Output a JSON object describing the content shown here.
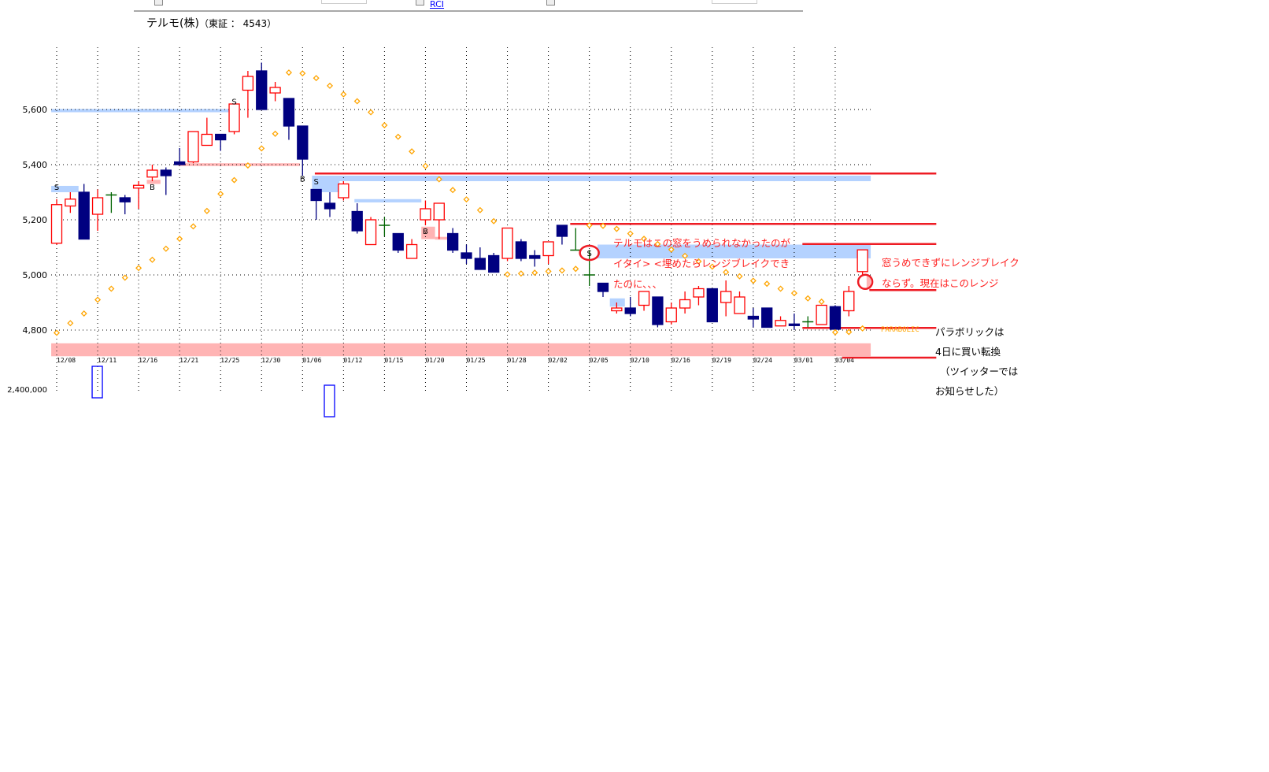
{
  "header": {
    "links": [
      "",
      "RCI",
      "",
      ""
    ],
    "title": "テルモ(株)",
    "subtitle": "（東証 ： 4543）"
  },
  "chart_data": {
    "type": "candlestick",
    "title": "テルモ(株)（東証 ： 4543）",
    "ylim": [
      4700,
      5780
    ],
    "yticks": [
      5600,
      5400,
      5200,
      5000,
      4800
    ],
    "ytick_labels": [
      "5,600",
      "5,400",
      "5,200",
      "5,000",
      "4,800"
    ],
    "grid": true,
    "date_labels": [
      "12/08",
      "12/11",
      "12/16",
      "12/21",
      "12/25",
      "12/30",
      "01/06",
      "01/12",
      "01/15",
      "01/20",
      "01/25",
      "01/28",
      "02/02",
      "02/05",
      "02/10",
      "02/16",
      "02/19",
      "02/24",
      "03/01",
      "03/04"
    ],
    "date_label_every": 3,
    "colors": {
      "up": "#ff0000",
      "down": "#000080",
      "doji": "#006400",
      "parabolic": "#ffa500",
      "band_blue": "#b4d2ff",
      "band_pink": "#ffb4b4",
      "line_red": "#ee1c24"
    },
    "ohlc": [
      [
        5115,
        5275,
        5110,
        5255
      ],
      [
        5250,
        5300,
        5225,
        5275
      ],
      [
        5300,
        5330,
        5130,
        5130
      ],
      [
        5220,
        5310,
        5160,
        5280
      ],
      [
        5290,
        5300,
        5225,
        5290
      ],
      [
        5280,
        5290,
        5220,
        5265
      ],
      [
        5315,
        5340,
        5240,
        5325
      ],
      [
        5355,
        5400,
        5340,
        5380
      ],
      [
        5380,
        5390,
        5290,
        5360
      ],
      [
        5410,
        5460,
        5400,
        5400
      ],
      [
        5410,
        5520,
        5405,
        5520
      ],
      [
        5470,
        5570,
        5470,
        5510
      ],
      [
        5510,
        5510,
        5450,
        5490
      ],
      [
        5520,
        5620,
        5510,
        5620
      ],
      [
        5670,
        5740,
        5570,
        5720
      ],
      [
        5740,
        5770,
        5600,
        5600
      ],
      [
        5660,
        5700,
        5630,
        5680
      ],
      [
        5640,
        5640,
        5490,
        5540
      ],
      [
        5540,
        5540,
        5360,
        5420
      ],
      [
        5310,
        5310,
        5200,
        5270
      ],
      [
        5260,
        5300,
        5210,
        5240
      ],
      [
        5280,
        5340,
        5270,
        5330
      ],
      [
        5230,
        5260,
        5150,
        5160
      ],
      [
        5110,
        5210,
        5110,
        5200
      ],
      [
        5180,
        5210,
        5140,
        5180
      ],
      [
        5150,
        5150,
        5080,
        5090
      ],
      [
        5060,
        5130,
        5060,
        5110
      ],
      [
        5200,
        5270,
        5180,
        5240
      ],
      [
        5200,
        5260,
        5130,
        5260
      ],
      [
        5150,
        5170,
        5080,
        5090
      ],
      [
        5080,
        5110,
        5040,
        5060
      ],
      [
        5060,
        5100,
        5020,
        5020
      ],
      [
        5070,
        5080,
        5010,
        5010
      ],
      [
        5060,
        5170,
        5050,
        5170
      ],
      [
        5120,
        5130,
        5050,
        5060
      ],
      [
        5070,
        5090,
        5030,
        5060
      ],
      [
        5070,
        5120,
        5040,
        5120
      ],
      [
        5180,
        5180,
        5110,
        5140
      ],
      [
        5090,
        5170,
        5090,
        5090
      ],
      [
        5000,
        5090,
        4960,
        5000
      ],
      [
        4970,
        4970,
        4920,
        4940
      ],
      [
        4870,
        4900,
        4860,
        4880
      ],
      [
        4880,
        4920,
        4850,
        4860
      ],
      [
        4890,
        4940,
        4870,
        4940
      ],
      [
        4920,
        4920,
        4810,
        4820
      ],
      [
        4830,
        4900,
        4820,
        4880
      ],
      [
        4880,
        4940,
        4860,
        4910
      ],
      [
        4920,
        4960,
        4890,
        4950
      ],
      [
        4950,
        4950,
        4830,
        4830
      ],
      [
        4900,
        4980,
        4850,
        4940
      ],
      [
        4860,
        4940,
        4860,
        4920
      ],
      [
        4850,
        4880,
        4810,
        4840
      ],
      [
        4880,
        4880,
        4810,
        4810
      ],
      [
        4815,
        4850,
        4815,
        4835
      ],
      [
        4822,
        4860,
        4800,
        4818
      ],
      [
        4830,
        4850,
        4810,
        4830
      ],
      [
        4820,
        4890,
        4820,
        4890
      ],
      [
        4885,
        4890,
        4803,
        4803
      ],
      [
        4870,
        4960,
        4850,
        4940
      ],
      [
        5012,
        5091,
        5000,
        5091
      ]
    ],
    "ohlc_order": [
      "open",
      "high",
      "low",
      "close"
    ],
    "parabolic": [
      4790,
      4825,
      4860,
      4910,
      4950,
      4990,
      5025,
      5055,
      5095,
      5131,
      5176,
      5232,
      5294,
      5344,
      5397,
      5459,
      5512,
      5734,
      5731,
      5714,
      5686,
      5655,
      5630,
      5590,
      5543,
      5501,
      5448,
      5395,
      5347,
      5308,
      5274,
      5235,
      5195,
      5002,
      5005,
      5008,
      5013,
      5016,
      5022,
      5180,
      5178,
      5167,
      5150,
      5131,
      5112,
      5092,
      5069,
      5049,
      5030,
      5010,
      4995,
      4979,
      4968,
      4950,
      4934,
      4915,
      4903,
      4792,
      4793,
      4806
    ],
    "parabolic_label": "PARABOLIC",
    "signals": [
      {
        "i": 0,
        "label": "S",
        "price": 5320
      },
      {
        "i": 7,
        "label": "B",
        "price": 5320
      },
      {
        "i": 13,
        "label": "S",
        "price": 5630
      },
      {
        "i": 18,
        "label": "B",
        "price": 5350
      },
      {
        "i": 19,
        "label": "S",
        "price": 5340
      },
      {
        "i": 27,
        "label": "B",
        "price": 5160
      },
      {
        "i": 39,
        "label": "S",
        "price": 5080
      }
    ],
    "bands": [
      {
        "from": -0.4,
        "to": 12.8,
        "p1": 5602,
        "p2": 5590,
        "color": "blue"
      },
      {
        "from": -0.4,
        "to": 1.6,
        "p1": 5323,
        "p2": 5300,
        "color": "blue"
      },
      {
        "from": 6.6,
        "to": 7.6,
        "p1": 5345,
        "p2": 5330,
        "color": "pink"
      },
      {
        "from": 8.9,
        "to": 17.8,
        "p1": 5405,
        "p2": 5395,
        "color": "pink"
      },
      {
        "from": 18.7,
        "to": 20.7,
        "p1": 5360,
        "p2": 5300,
        "color": "blue"
      },
      {
        "from": 18.7,
        "to": 59.6,
        "p1": 5360,
        "p2": 5340,
        "color": "blue"
      },
      {
        "from": 21.8,
        "to": 26.7,
        "p1": 5275,
        "p2": 5263,
        "color": "blue"
      },
      {
        "from": 26.7,
        "to": 27.7,
        "p1": 5175,
        "p2": 5130,
        "color": "pink"
      },
      {
        "from": 27.7,
        "to": 29,
        "p1": 5138,
        "p2": 5128,
        "color": "pink"
      },
      {
        "from": 39.6,
        "to": 59.6,
        "p1": 5110,
        "p2": 5060,
        "color": "blue"
      },
      {
        "from": 40.5,
        "to": 41.6,
        "p1": 4915,
        "p2": 4885,
        "color": "blue"
      },
      {
        "from": 59.3,
        "to": 59.6,
        "p1": 5000,
        "p2": 4950,
        "color": "pink"
      },
      {
        "from": -0.4,
        "to": 59.6,
        "p1": 4752,
        "p2": 4705,
        "color": "pink"
      }
    ],
    "red_lines": [
      {
        "from": 18.9,
        "to": 64.4,
        "price": 5368
      },
      {
        "from": 37.6,
        "to": 64.4,
        "price": 5185
      },
      {
        "from": 54.6,
        "to": 64.4,
        "price": 5112
      },
      {
        "from": 59.5,
        "to": 64.4,
        "price": 4945
      },
      {
        "from": 54.6,
        "to": 64.4,
        "price": 4808
      },
      {
        "from": 57.5,
        "to": 64.4,
        "price": 4700
      }
    ],
    "circles": [
      {
        "i": 39,
        "price": 5080
      },
      {
        "i": 59.2,
        "price": 4975
      }
    ],
    "volume": {
      "ytick_label": "2,400,000",
      "bars": [
        {
          "i": 3
        },
        {
          "i": 20
        }
      ]
    }
  },
  "annotations": {
    "gap_note": [
      "テルモはこの窓をうめられなかったのが",
      "イタイ> <埋めたらレンジブレイクでき",
      "たのに、、、"
    ],
    "range_note": [
      "窓うめできずにレンジブレイク",
      "ならず。現在はこのレンジ"
    ],
    "parabolic_note": [
      "パラボリックは",
      "4日に買い転換",
      "（ツイッターでは",
      "お知らせした）"
    ]
  }
}
